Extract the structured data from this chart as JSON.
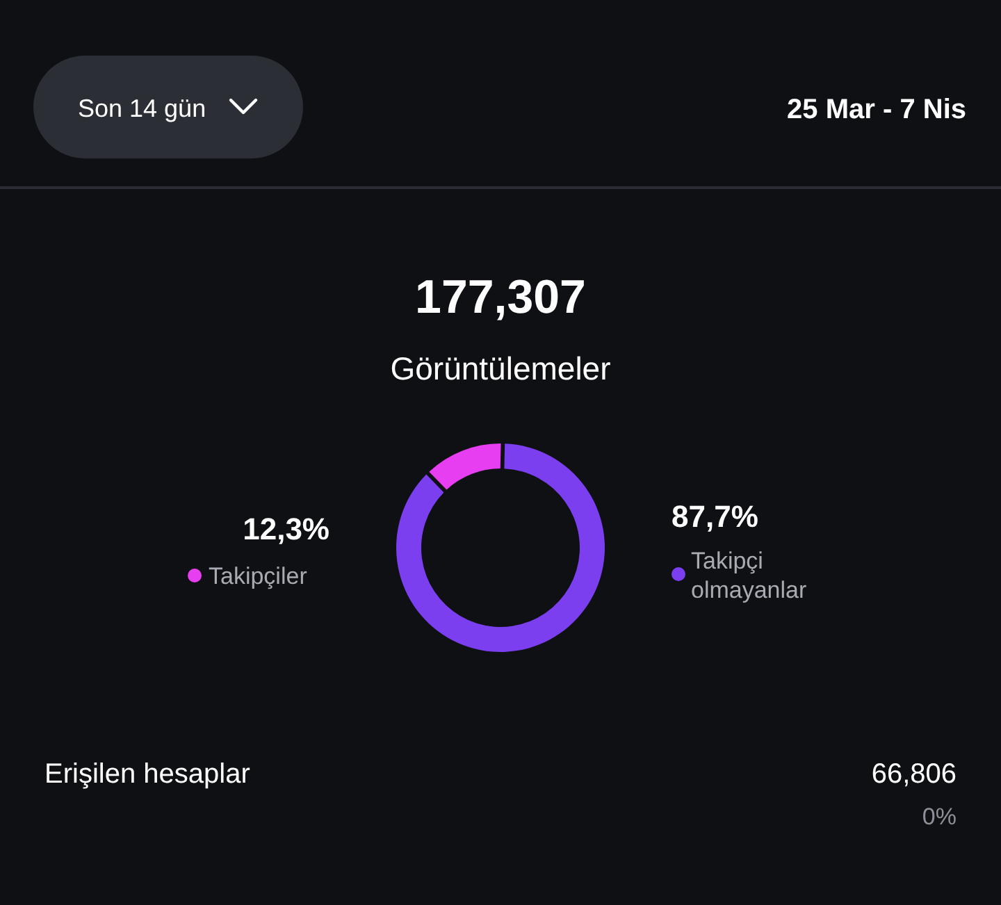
{
  "chart_data": {
    "type": "donut",
    "title": "177,307",
    "subtitle": "Görüntülemeler",
    "categories": [
      "Takipçiler",
      "Takipçi olmayanlar"
    ],
    "values": [
      12.3,
      87.7
    ],
    "value_labels": [
      "12,3%",
      "87,7%"
    ],
    "colors": [
      "#e83ef2",
      "#7c3ff0"
    ],
    "legend": "right",
    "annotations": [
      "Son 14 gün",
      "25 Mar - 7 Nis",
      "Erişilen hesaplar",
      "66,806",
      "0%"
    ]
  }
}
